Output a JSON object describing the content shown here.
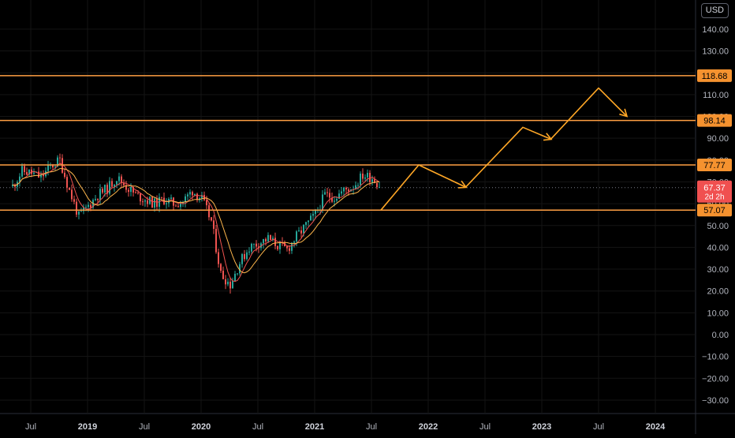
{
  "currency_label": "USD",
  "colors": {
    "background": "#000000",
    "grid": "#141414",
    "up": "#26a69a",
    "down": "#ef5350",
    "level_line": "#ff9f43",
    "level_label_bg": "#f5922f",
    "projection": "#ffa726",
    "price_label_bg": "#f05050",
    "ma_fast": "#ef5350",
    "ma_slow": "#ffb74d"
  },
  "chart_data": {
    "type": "candlestick",
    "ylim": [
      -36,
      145
    ],
    "y_ticks": [
      "140.00",
      "130.00",
      "120.00",
      "110.00",
      "100.00",
      "90.00",
      "80.00",
      "70.00",
      "60.00",
      "50.00",
      "40.00",
      "30.00",
      "20.00",
      "10.00",
      "0.00",
      "−10.00",
      "−20.00",
      "−30.00"
    ],
    "y_tick_values": [
      140,
      130,
      120,
      110,
      100,
      90,
      80,
      70,
      60,
      50,
      40,
      30,
      20,
      10,
      0,
      -10,
      -20,
      -30
    ],
    "x_ticks": [
      {
        "label": "Jul",
        "date": "2018-07",
        "major": false
      },
      {
        "label": "2019",
        "date": "2019-01",
        "major": true
      },
      {
        "label": "Jul",
        "date": "2019-07",
        "major": false
      },
      {
        "label": "2020",
        "date": "2020-01",
        "major": true
      },
      {
        "label": "Jul",
        "date": "2020-07",
        "major": false
      },
      {
        "label": "2021",
        "date": "2021-01",
        "major": true
      },
      {
        "label": "Jul",
        "date": "2021-07",
        "major": false
      },
      {
        "label": "2022",
        "date": "2022-01",
        "major": true
      },
      {
        "label": "Jul",
        "date": "2022-07",
        "major": false
      },
      {
        "label": "2023",
        "date": "2023-01",
        "major": true
      },
      {
        "label": "Jul",
        "date": "2023-07",
        "major": false
      },
      {
        "label": "2024",
        "date": "2024-01",
        "major": true
      }
    ],
    "horizontal_levels": [
      {
        "value": 118.68,
        "label": "118.68"
      },
      {
        "value": 98.14,
        "label": "98.14"
      },
      {
        "value": 77.77,
        "label": "77.77"
      },
      {
        "value": 57.07,
        "label": "57.07"
      }
    ],
    "last_price": {
      "value": 67.37,
      "label": "67.37",
      "countdown": "2d 2h"
    },
    "price_path": [
      {
        "date": "2018-05",
        "value": 68
      },
      {
        "date": "2018-06",
        "value": 75
      },
      {
        "date": "2018-07",
        "value": 74
      },
      {
        "date": "2018-08",
        "value": 72
      },
      {
        "date": "2018-09",
        "value": 77
      },
      {
        "date": "2018-10",
        "value": 80
      },
      {
        "date": "2018-11",
        "value": 66
      },
      {
        "date": "2018-12",
        "value": 54
      },
      {
        "date": "2019-01",
        "value": 59
      },
      {
        "date": "2019-02",
        "value": 64
      },
      {
        "date": "2019-03",
        "value": 67
      },
      {
        "date": "2019-04",
        "value": 72
      },
      {
        "date": "2019-05",
        "value": 68
      },
      {
        "date": "2019-06",
        "value": 64
      },
      {
        "date": "2019-07",
        "value": 62
      },
      {
        "date": "2019-08",
        "value": 60
      },
      {
        "date": "2019-09",
        "value": 62
      },
      {
        "date": "2019-10",
        "value": 60
      },
      {
        "date": "2019-11",
        "value": 61
      },
      {
        "date": "2019-12",
        "value": 66
      },
      {
        "date": "2020-01",
        "value": 62
      },
      {
        "date": "2020-02",
        "value": 52
      },
      {
        "date": "2020-03",
        "value": 28
      },
      {
        "date": "2020-04",
        "value": 23
      },
      {
        "date": "2020-05",
        "value": 33
      },
      {
        "date": "2020-06",
        "value": 40
      },
      {
        "date": "2020-07",
        "value": 42
      },
      {
        "date": "2020-08",
        "value": 44
      },
      {
        "date": "2020-09",
        "value": 41
      },
      {
        "date": "2020-10",
        "value": 39
      },
      {
        "date": "2020-11",
        "value": 45
      },
      {
        "date": "2020-12",
        "value": 50
      },
      {
        "date": "2021-01",
        "value": 55
      },
      {
        "date": "2021-02",
        "value": 64
      },
      {
        "date": "2021-03",
        "value": 63
      },
      {
        "date": "2021-04",
        "value": 66
      },
      {
        "date": "2021-05",
        "value": 68
      },
      {
        "date": "2021-06",
        "value": 73
      },
      {
        "date": "2021-07",
        "value": 72
      },
      {
        "date": "2021-08",
        "value": 67.37
      }
    ],
    "projection": [
      {
        "date": "2021-08",
        "value": 57.07
      },
      {
        "date": "2021-12",
        "value": 77.77
      },
      {
        "date": "2022-05",
        "value": 67.5
      },
      {
        "date": "2022-05",
        "value": 67.8
      },
      {
        "date": "2022-11",
        "value": 95.0
      },
      {
        "date": "2023-02",
        "value": 89.5
      },
      {
        "date": "2023-02",
        "value": 89.8
      },
      {
        "date": "2023-07",
        "value": 113.0
      },
      {
        "date": "2023-10",
        "value": 100.0
      }
    ]
  }
}
